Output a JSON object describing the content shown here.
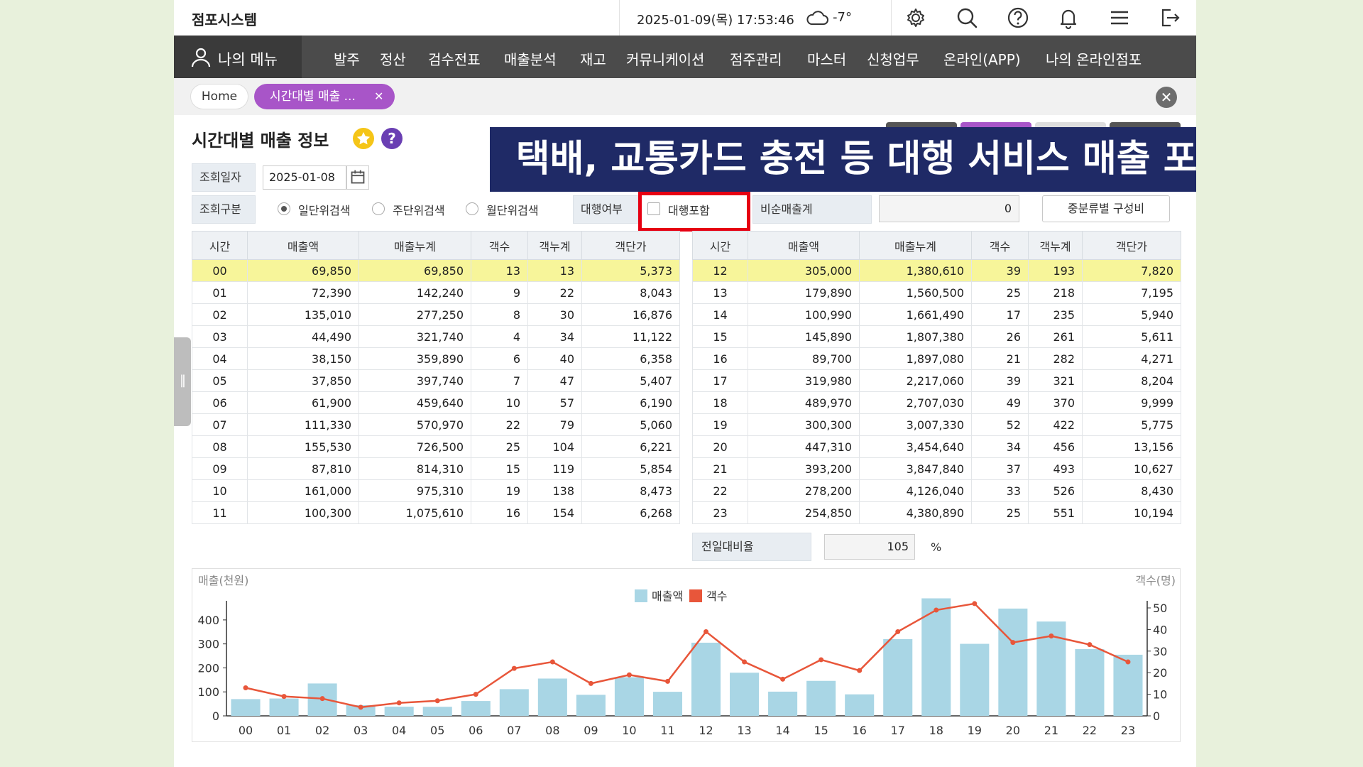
{
  "app": {
    "brand": "점포시스템"
  },
  "topbar": {
    "datetime": "2025-01-09(목) 17:53:46",
    "temperature": "-7°",
    "icons": [
      "gear-icon",
      "search-icon",
      "help-circle-icon",
      "bell-icon",
      "hamburger-menu-icon",
      "logout-icon"
    ]
  },
  "nav": {
    "my_menu": "나의 메뉴",
    "items": [
      "발주",
      "정산",
      "검수전표",
      "매출분석",
      "재고",
      "커뮤니케이션",
      "점주관리",
      "마스터",
      "신청업무",
      "온라인(APP)",
      "나의 온라인점포"
    ]
  },
  "tabs": {
    "home": "Home",
    "active": "시간대별 매출 ..."
  },
  "page": {
    "title": "시간대별 매출 정보",
    "help_label": "?"
  },
  "filters": {
    "date_label": "조회일자",
    "date_value": "2025-01-08",
    "type_label": "조회구분",
    "radios": [
      "일단위검색",
      "주단위검색",
      "월단위검색"
    ],
    "selected_radio": 0,
    "agency_label": "대행여부",
    "agency_checkbox": "대행포함",
    "agency_checked": false,
    "nonsales_label": "비순매출계",
    "nonsales_value": "0",
    "mid_category_button": "중분류별 구성비"
  },
  "banner": {
    "text": "택배, 교통카드 충전 등 대행 서비스 매출 포함 여부"
  },
  "table": {
    "headers": [
      "시간",
      "매출액",
      "매출누계",
      "객수",
      "객누계",
      "객단가"
    ],
    "left_rows": [
      [
        "00",
        "69,850",
        "69,850",
        "13",
        "13",
        "5,373"
      ],
      [
        "01",
        "72,390",
        "142,240",
        "9",
        "22",
        "8,043"
      ],
      [
        "02",
        "135,010",
        "277,250",
        "8",
        "30",
        "16,876"
      ],
      [
        "03",
        "44,490",
        "321,740",
        "4",
        "34",
        "11,122"
      ],
      [
        "04",
        "38,150",
        "359,890",
        "6",
        "40",
        "6,358"
      ],
      [
        "05",
        "37,850",
        "397,740",
        "7",
        "47",
        "5,407"
      ],
      [
        "06",
        "61,900",
        "459,640",
        "10",
        "57",
        "6,190"
      ],
      [
        "07",
        "111,330",
        "570,970",
        "22",
        "79",
        "5,060"
      ],
      [
        "08",
        "155,530",
        "726,500",
        "25",
        "104",
        "6,221"
      ],
      [
        "09",
        "87,810",
        "814,310",
        "15",
        "119",
        "5,854"
      ],
      [
        "10",
        "161,000",
        "975,310",
        "19",
        "138",
        "8,473"
      ],
      [
        "11",
        "100,300",
        "1,075,610",
        "16",
        "154",
        "6,268"
      ]
    ],
    "right_rows": [
      [
        "12",
        "305,000",
        "1,380,610",
        "39",
        "193",
        "7,820"
      ],
      [
        "13",
        "179,890",
        "1,560,500",
        "25",
        "218",
        "7,195"
      ],
      [
        "14",
        "100,990",
        "1,661,490",
        "17",
        "235",
        "5,940"
      ],
      [
        "15",
        "145,890",
        "1,807,380",
        "26",
        "261",
        "5,611"
      ],
      [
        "16",
        "89,700",
        "1,897,080",
        "21",
        "282",
        "4,271"
      ],
      [
        "17",
        "319,980",
        "2,217,060",
        "39",
        "321",
        "8,204"
      ],
      [
        "18",
        "489,970",
        "2,707,030",
        "49",
        "370",
        "9,999"
      ],
      [
        "19",
        "300,300",
        "3,007,330",
        "52",
        "422",
        "5,775"
      ],
      [
        "20",
        "447,310",
        "3,454,640",
        "34",
        "456",
        "13,156"
      ],
      [
        "21",
        "393,200",
        "3,847,840",
        "37",
        "493",
        "10,627"
      ],
      [
        "22",
        "278,200",
        "4,126,040",
        "33",
        "526",
        "8,430"
      ],
      [
        "23",
        "254,850",
        "4,380,890",
        "25",
        "551",
        "10,194"
      ]
    ]
  },
  "ratio": {
    "label": "전일대비율",
    "value": "105",
    "unit": "%"
  },
  "chart_data": {
    "type": "bar",
    "ylabel": "매출(천원)",
    "y2label": "객수(명)",
    "categories": [
      "00",
      "01",
      "02",
      "03",
      "04",
      "05",
      "06",
      "07",
      "08",
      "09",
      "10",
      "11",
      "12",
      "13",
      "14",
      "15",
      "16",
      "17",
      "18",
      "19",
      "20",
      "21",
      "22",
      "23"
    ],
    "series": [
      {
        "name": "매출액",
        "type": "bar",
        "axis": "left",
        "color": "#a9d6e5",
        "values": [
          69.85,
          72.39,
          135.01,
          44.49,
          38.15,
          37.85,
          61.9,
          111.33,
          155.53,
          87.81,
          161.0,
          100.3,
          305.0,
          179.89,
          100.99,
          145.89,
          89.7,
          319.98,
          489.97,
          300.3,
          447.31,
          393.2,
          278.2,
          254.85
        ]
      },
      {
        "name": "객수",
        "type": "line",
        "axis": "right",
        "color": "#e8563a",
        "values": [
          13,
          9,
          8,
          4,
          6,
          7,
          10,
          22,
          25,
          15,
          19,
          16,
          39,
          25,
          17,
          26,
          21,
          39,
          49,
          52,
          34,
          37,
          33,
          25
        ]
      }
    ],
    "yticks": [
      "0",
      "100",
      "200",
      "300",
      "400"
    ],
    "y2ticks": [
      "0",
      "10",
      "20",
      "30",
      "40",
      "50"
    ],
    "ylim": [
      0,
      450
    ],
    "y2lim": [
      0,
      50
    ],
    "legend": "top-center"
  }
}
